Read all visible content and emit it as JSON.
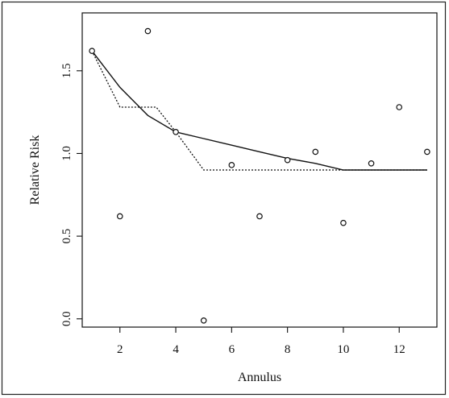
{
  "chart_data": {
    "type": "scatter",
    "xlabel": "Annulus",
    "ylabel": "Relative Risk",
    "xlim": [
      0.65,
      13.35
    ],
    "ylim": [
      -0.05,
      1.85
    ],
    "xticks": [
      2,
      4,
      6,
      8,
      10,
      12
    ],
    "xtick_labels": [
      "2",
      "4",
      "6",
      "8",
      "10",
      "12"
    ],
    "yticks": [
      0.0,
      0.5,
      1.0,
      1.5
    ],
    "ytick_labels": [
      "0.0",
      "0.5",
      "1.0",
      "1.5"
    ],
    "grid": false,
    "points": {
      "marker": "open-circle",
      "x": [
        1,
        2,
        3,
        4,
        5,
        6,
        7,
        8,
        9,
        10,
        11,
        12,
        13
      ],
      "y": [
        1.62,
        0.62,
        1.74,
        1.13,
        -0.01,
        0.93,
        0.62,
        0.96,
        1.01,
        0.58,
        0.94,
        1.28,
        1.01
      ]
    },
    "series": [
      {
        "style": "solid",
        "x": [
          1,
          2,
          3,
          4,
          5,
          6,
          7,
          8,
          9,
          10,
          11,
          12,
          13
        ],
        "y": [
          1.62,
          1.4,
          1.23,
          1.13,
          1.09,
          1.05,
          1.01,
          0.97,
          0.94,
          0.9,
          0.9,
          0.9,
          0.9
        ]
      },
      {
        "style": "dotted",
        "x": [
          1,
          1.5,
          2,
          3,
          3.3,
          4,
          5,
          10,
          13
        ],
        "y": [
          1.62,
          1.45,
          1.28,
          1.28,
          1.28,
          1.13,
          0.9,
          0.9,
          0.9
        ]
      }
    ]
  }
}
